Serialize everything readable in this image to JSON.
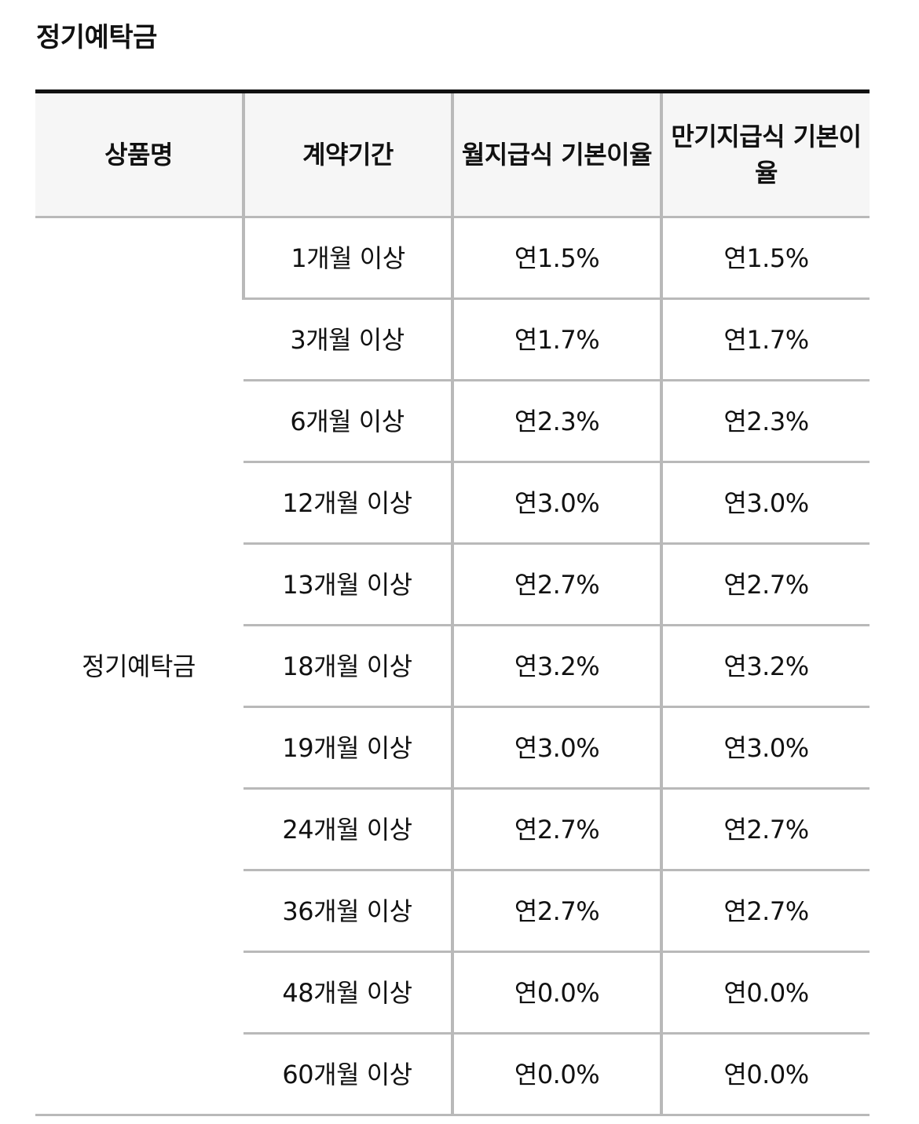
{
  "section_title": "정기예탁금",
  "table": {
    "headers": {
      "product": "상품명",
      "period": "계약기간",
      "monthly_rate": "월지급식 기본이율",
      "maturity_rate": "만기지급식 기본이율"
    },
    "product_name": "정기예탁금",
    "rows": [
      {
        "period": "1개월 이상",
        "monthly": "연1.5%",
        "maturity": "연1.5%"
      },
      {
        "period": "3개월 이상",
        "monthly": "연1.7%",
        "maturity": "연1.7%"
      },
      {
        "period": "6개월 이상",
        "monthly": "연2.3%",
        "maturity": "연2.3%"
      },
      {
        "period": "12개월 이상",
        "monthly": "연3.0%",
        "maturity": "연3.0%"
      },
      {
        "period": "13개월 이상",
        "monthly": "연2.7%",
        "maturity": "연2.7%"
      },
      {
        "period": "18개월 이상",
        "monthly": "연3.2%",
        "maturity": "연3.2%"
      },
      {
        "period": "19개월 이상",
        "monthly": "연3.0%",
        "maturity": "연3.0%"
      },
      {
        "period": "24개월 이상",
        "monthly": "연2.7%",
        "maturity": "연2.7%"
      },
      {
        "period": "36개월 이상",
        "monthly": "연2.7%",
        "maturity": "연2.7%"
      },
      {
        "period": "48개월 이상",
        "monthly": "연0.0%",
        "maturity": "연0.0%"
      },
      {
        "period": "60개월 이상",
        "monthly": "연0.0%",
        "maturity": "연0.0%"
      }
    ]
  }
}
